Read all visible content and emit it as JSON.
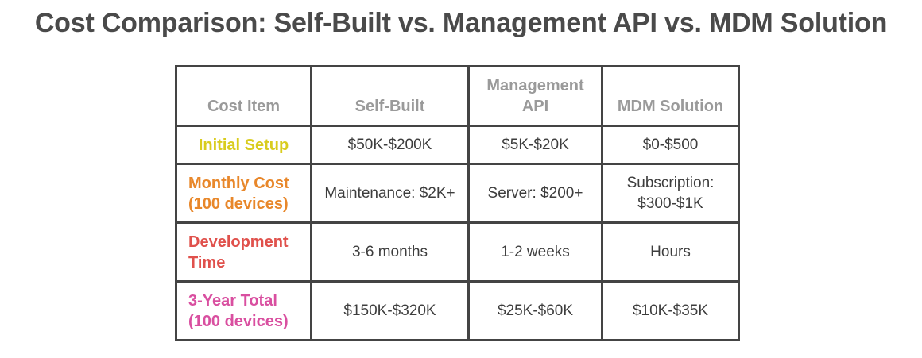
{
  "title": "Cost Comparison: Self-Built vs. Management API vs. MDM Solution",
  "colors": {
    "initial_setup": "#d9cc1e",
    "monthly_cost": "#e8872a",
    "development_time": "#e0514c",
    "three_year_total": "#d94fa0",
    "header_text": "#9a9a9a",
    "border": "#444444"
  },
  "chart_data": {
    "type": "table",
    "columns": [
      "Cost Item",
      "Self-Built",
      "Management API",
      "MDM Solution"
    ],
    "rows": [
      {
        "label": "Initial Setup",
        "values": [
          "$50K-$200K",
          "$5K-$20K",
          "$0-$500"
        ]
      },
      {
        "label": "Monthly Cost (100 devices)",
        "values": [
          "Maintenance: $2K+",
          "Server: $200+",
          "Subscription: $300-$1K"
        ]
      },
      {
        "label": "Development Time",
        "values": [
          "3-6 months",
          "1-2 weeks",
          "Hours"
        ]
      },
      {
        "label": "3-Year Total (100 devices)",
        "values": [
          "$150K-$320K",
          "$25K-$60K",
          "$10K-$35K"
        ]
      }
    ]
  }
}
